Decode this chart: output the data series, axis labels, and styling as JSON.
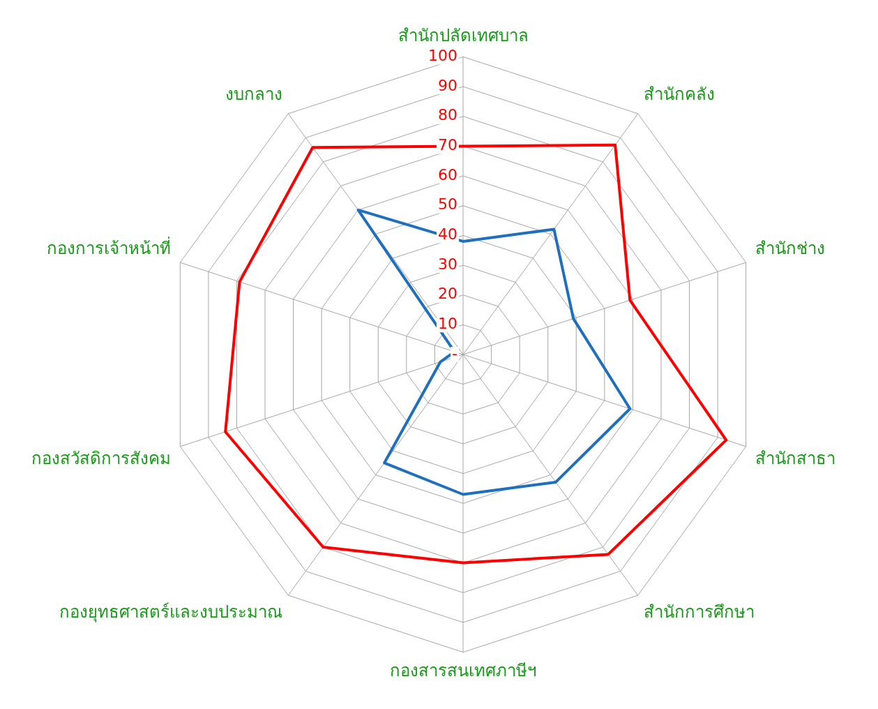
{
  "chart_data": {
    "type": "radar",
    "categories": [
      "สำนักปลัดเทศบาล",
      "สำนักคลัง",
      "สำนักช่าง",
      "สำนักสาธา",
      "สำนักการศึกษา",
      "กองสารสนเทศภาษีฯ",
      "กองยุทธศาสตร์และงบประมาณ",
      "กองสวัสดิการสังคม",
      "กองการเจ้าหน้าที่",
      "งบกลาง"
    ],
    "series": [
      {
        "color": "#ff0000",
        "values": [
          70,
          87,
          59,
          93,
          83,
          70,
          80,
          84,
          79,
          86
        ]
      },
      {
        "color": "#1f6fbf",
        "values": [
          38,
          52,
          39,
          59,
          53,
          47,
          45,
          8,
          3,
          60
        ]
      }
    ],
    "ylim": [
      0,
      100
    ],
    "yticks": [
      {
        "value": 0,
        "label": "-"
      },
      10,
      20,
      30,
      40,
      50,
      60,
      70,
      80,
      90,
      100
    ],
    "grid": true,
    "marker": "none",
    "legend": false
  }
}
